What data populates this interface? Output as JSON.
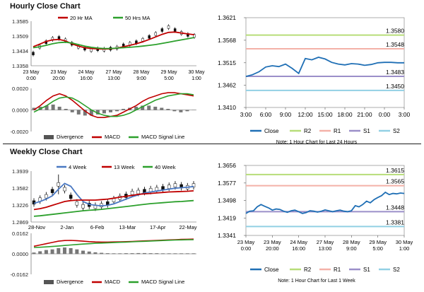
{
  "sections": {
    "hourly_title": "Hourly Close Chart",
    "weekly_title": "Weekly Close Chart"
  },
  "chart_data": [
    {
      "id": "hourly_price",
      "type": "line",
      "legend": [
        "20 Hr MA",
        "50 Hrs MA"
      ],
      "y_ticks": [
        "1.3585",
        "1.3509",
        "1.3434",
        "1.3358"
      ],
      "x_ticks": [
        [
          "23 May",
          "0:00"
        ],
        [
          "23 May",
          "20:00"
        ],
        [
          "24 May",
          "16:00"
        ],
        [
          "27 May",
          "13:00"
        ],
        [
          "28 May",
          "9:00"
        ],
        [
          "29 May",
          "5:00"
        ],
        [
          "30 May",
          "1:00"
        ]
      ],
      "ylim": [
        1.3358,
        1.3585
      ],
      "series": [
        {
          "name": "Price",
          "color": "#111111",
          "values": [
            1.342,
            1.3455,
            1.3478,
            1.3495,
            1.35,
            1.3488,
            1.347,
            1.3455,
            1.3445,
            1.3438,
            1.3442,
            1.344,
            1.3445,
            1.345,
            1.3462,
            1.347,
            1.3478,
            1.349,
            1.3505,
            1.352,
            1.354,
            1.3555,
            1.354,
            1.3525,
            1.3515,
            1.351
          ]
        },
        {
          "name": "20 Hr MA",
          "color": "#c00000",
          "values": [
            1.3455,
            1.3468,
            1.3482,
            1.349,
            1.3492,
            1.3485,
            1.347,
            1.3458,
            1.345,
            1.3446,
            1.3444,
            1.3443,
            1.3444,
            1.3448,
            1.3455,
            1.3462,
            1.347,
            1.348,
            1.3492,
            1.3505,
            1.3518,
            1.3528,
            1.353,
            1.3525,
            1.352,
            1.3516
          ]
        },
        {
          "name": "50 Hrs MA",
          "color": "#2ca02c",
          "values": [
            1.345,
            1.3455,
            1.3462,
            1.347,
            1.3476,
            1.3478,
            1.3474,
            1.3466,
            1.3458,
            1.3452,
            1.3448,
            1.3446,
            1.3446,
            1.3448,
            1.345,
            1.3452,
            1.3455,
            1.3458,
            1.3462,
            1.3466,
            1.3472,
            1.3478,
            1.3484,
            1.349,
            1.3496,
            1.3502
          ]
        }
      ]
    },
    {
      "id": "hourly_macd",
      "type": "bar",
      "legend": [
        "Divergence",
        "MACD",
        "MACD Signal Line"
      ],
      "y_ticks": [
        "0.0020",
        "0.0000",
        "-0.0020"
      ],
      "ylim": [
        -0.002,
        0.002
      ],
      "series": [
        {
          "name": "Divergence",
          "color": "#555555",
          "values": [
            0.0002,
            0.0003,
            0.0004,
            0.0005,
            0.0003,
            0.0001,
            -0.0002,
            -0.0004,
            -0.0005,
            -0.0005,
            -0.0004,
            -0.0003,
            -0.0002,
            -0.0001,
            0.0001,
            0.0002,
            0.0003,
            0.0004,
            0.0004,
            0.0003,
            0.0002,
            0.0001,
            -0.0001,
            -0.0002,
            -0.0001,
            0.0
          ]
        },
        {
          "name": "MACD",
          "color": "#c00000",
          "values": [
            0.0,
            0.0004,
            0.0009,
            0.0013,
            0.0015,
            0.0013,
            0.0009,
            0.0004,
            -0.0001,
            -0.0005,
            -0.0007,
            -0.0007,
            -0.0006,
            -0.0005,
            -0.0002,
            0.0001,
            0.0004,
            0.0008,
            0.0011,
            0.0013,
            0.0015,
            0.0016,
            0.0016,
            0.0015,
            0.0014,
            0.0013
          ]
        },
        {
          "name": "MACD Signal Line",
          "color": "#2ca02c",
          "values": [
            -0.0002,
            0.0001,
            0.0004,
            0.0008,
            0.0011,
            0.0012,
            0.0011,
            0.0008,
            0.0004,
            0.0,
            -0.0003,
            -0.0005,
            -0.0006,
            -0.0006,
            -0.0005,
            -0.0003,
            0.0,
            0.0003,
            0.0006,
            0.0009,
            0.0011,
            0.0013,
            0.0014,
            0.0015,
            0.0015,
            0.0014
          ]
        }
      ]
    },
    {
      "id": "hourly_pivot",
      "type": "line",
      "legend": [
        "Close",
        "R2",
        "R1",
        "S1",
        "S2"
      ],
      "note": "Note: 1 Hour Chart for Last 24 Hours",
      "y_ticks": [
        "1.3621",
        "1.3568",
        "1.3515",
        "1.3462",
        "1.3410"
      ],
      "x_ticks": [
        "3:00",
        "6:00",
        "9:00",
        "12:00",
        "15:00",
        "18:00",
        "21:00",
        "0:00",
        "3:00"
      ],
      "ylim": [
        1.341,
        1.3621
      ],
      "levels": [
        {
          "name": "R2",
          "value": 1.358,
          "label": "1.3580",
          "color": "#b7dd79"
        },
        {
          "name": "R1",
          "value": 1.3548,
          "label": "1.3548",
          "color": "#f4b1a8"
        },
        {
          "name": "S1",
          "value": 1.3483,
          "label": "1.3483",
          "color": "#9b8fc9"
        },
        {
          "name": "S2",
          "value": 1.345,
          "label": "1.3450",
          "color": "#92d0e4"
        }
      ],
      "series": [
        {
          "name": "Close",
          "color": "#1f6fb5",
          "values": [
            1.3483,
            1.3487,
            1.3494,
            1.3505,
            1.3508,
            1.3506,
            1.3512,
            1.3502,
            1.349,
            1.3525,
            1.3522,
            1.3528,
            1.3524,
            1.3516,
            1.3512,
            1.351,
            1.3513,
            1.3512,
            1.3509,
            1.3511,
            1.3515,
            1.3516,
            1.3516,
            1.3515,
            1.3515
          ]
        }
      ]
    },
    {
      "id": "weekly_price",
      "type": "line",
      "legend": [
        "4 Week",
        "13 Week",
        "40 Week"
      ],
      "y_ticks": [
        "1.3939",
        "1.3582",
        "1.3226",
        "1.2869"
      ],
      "x_ticks": [
        "28-Nov",
        "2-Jan",
        "6-Feb",
        "13-Mar",
        "17-Apr",
        "22-May"
      ],
      "ylim": [
        1.2869,
        1.3939
      ],
      "series": [
        {
          "name": "Price",
          "color": "#111111",
          "values": [
            1.328,
            1.334,
            1.341,
            1.352,
            1.366,
            1.356,
            1.34,
            1.326,
            1.32,
            1.323,
            1.319,
            1.322,
            1.326,
            1.333,
            1.338,
            1.342,
            1.348,
            1.35,
            1.352,
            1.354,
            1.356,
            1.358,
            1.361,
            1.364,
            1.362,
            1.36,
            1.364
          ]
        },
        {
          "name": "4 Week",
          "color": "#4a78c2",
          "values": [
            1.326,
            1.33,
            1.335,
            1.342,
            1.356,
            1.368,
            1.362,
            1.345,
            1.33,
            1.324,
            1.322,
            1.321,
            1.322,
            1.325,
            1.33,
            1.335,
            1.34,
            1.344,
            1.348,
            1.35,
            1.352,
            1.354,
            1.356,
            1.358,
            1.359,
            1.36,
            1.3615
          ]
        },
        {
          "name": "13 Week",
          "color": "#c00000",
          "values": [
            1.313,
            1.315,
            1.318,
            1.322,
            1.326,
            1.33,
            1.332,
            1.333,
            1.333,
            1.333,
            1.333,
            1.334,
            1.335,
            1.337,
            1.339,
            1.341,
            1.343,
            1.345,
            1.346,
            1.347,
            1.348,
            1.349,
            1.35,
            1.3505,
            1.351,
            1.3515,
            1.3525
          ]
        },
        {
          "name": "40 Week",
          "color": "#2ca02c",
          "values": [
            1.299,
            1.3,
            1.3015,
            1.303,
            1.3045,
            1.306,
            1.3075,
            1.309,
            1.3105,
            1.3115,
            1.3125,
            1.3135,
            1.315,
            1.3165,
            1.318,
            1.3195,
            1.321,
            1.3225,
            1.324,
            1.3255,
            1.3265,
            1.3275,
            1.3285,
            1.3295,
            1.33,
            1.331,
            1.332
          ]
        }
      ]
    },
    {
      "id": "weekly_macd",
      "type": "bar",
      "legend": [
        "Divergence",
        "MACD",
        "MACD Signal Line"
      ],
      "y_ticks": [
        "0.0162",
        "0.0000",
        "-0.0162"
      ],
      "ylim": [
        -0.0162,
        0.0162
      ],
      "series": [
        {
          "name": "Divergence",
          "color": "#555555",
          "values": [
            0.001,
            0.002,
            0.003,
            0.0035,
            0.0045,
            0.005,
            0.0045,
            0.0035,
            0.0025,
            0.0018,
            0.0012,
            0.0008,
            0.0005,
            0.0004,
            0.0004,
            0.0005,
            0.0005,
            0.0006,
            0.0006,
            0.0005,
            0.0005,
            0.0004,
            0.0004,
            0.0004,
            0.0004,
            0.0004,
            0.0004
          ]
        },
        {
          "name": "MACD",
          "color": "#c00000",
          "values": [
            0.006,
            0.007,
            0.008,
            0.009,
            0.01,
            0.0105,
            0.0106,
            0.0104,
            0.01,
            0.0096,
            0.0094,
            0.0093,
            0.0093,
            0.0094,
            0.0095,
            0.0096,
            0.0098,
            0.01,
            0.0102,
            0.0104,
            0.0106,
            0.0108,
            0.011,
            0.0112,
            0.0114,
            0.0115,
            0.0116
          ]
        },
        {
          "name": "MACD Signal Line",
          "color": "#2ca02c",
          "values": [
            0.005,
            0.0052,
            0.0055,
            0.0058,
            0.0062,
            0.0066,
            0.007,
            0.0074,
            0.0077,
            0.008,
            0.0083,
            0.0085,
            0.0087,
            0.0089,
            0.0091,
            0.0093,
            0.0095,
            0.0097,
            0.0099,
            0.0101,
            0.0103,
            0.0105,
            0.0107,
            0.0109,
            0.011,
            0.0111,
            0.0112
          ]
        }
      ]
    },
    {
      "id": "weekly_pivot",
      "type": "line",
      "legend": [
        "Close",
        "R2",
        "R1",
        "S1",
        "S2"
      ],
      "note": "Note: 1 Hour Chart for Last 1 Week",
      "y_ticks": [
        "1.3656",
        "1.3577",
        "1.3498",
        "1.3419",
        "1.3341"
      ],
      "x_ticks": [
        [
          "23 May",
          "0:00"
        ],
        [
          "23 May",
          "20:00"
        ],
        [
          "24 May",
          "16:00"
        ],
        [
          "27 May",
          "13:00"
        ],
        [
          "28 May",
          "9:00"
        ],
        [
          "29 May",
          "5:00"
        ],
        [
          "30 May",
          "1:00"
        ]
      ],
      "ylim": [
        1.3341,
        1.3656
      ],
      "levels": [
        {
          "name": "R2",
          "value": 1.3615,
          "label": "1.3615",
          "color": "#b7dd79"
        },
        {
          "name": "R1",
          "value": 1.3565,
          "label": "1.3565",
          "color": "#f4b1a8"
        },
        {
          "name": "S1",
          "value": 1.3448,
          "label": "1.3448",
          "color": "#9b8fc9"
        },
        {
          "name": "S2",
          "value": 1.3381,
          "label": "1.3381",
          "color": "#92d0e4"
        }
      ],
      "series": [
        {
          "name": "Close",
          "color": "#1f6fb5",
          "values": [
            1.344,
            1.345,
            1.3452,
            1.347,
            1.348,
            1.3472,
            1.3465,
            1.3455,
            1.346,
            1.3458,
            1.345,
            1.3445,
            1.3452,
            1.3455,
            1.3448,
            1.344,
            1.3444,
            1.3452,
            1.345,
            1.3446,
            1.345,
            1.3456,
            1.3452,
            1.3448,
            1.3452,
            1.3455,
            1.345,
            1.3448,
            1.3452,
            1.3475,
            1.347,
            1.348,
            1.3495,
            1.3488,
            1.3502,
            1.3512,
            1.352,
            1.3535,
            1.3525,
            1.353,
            1.3528,
            1.3532,
            1.353
          ]
        }
      ]
    }
  ]
}
